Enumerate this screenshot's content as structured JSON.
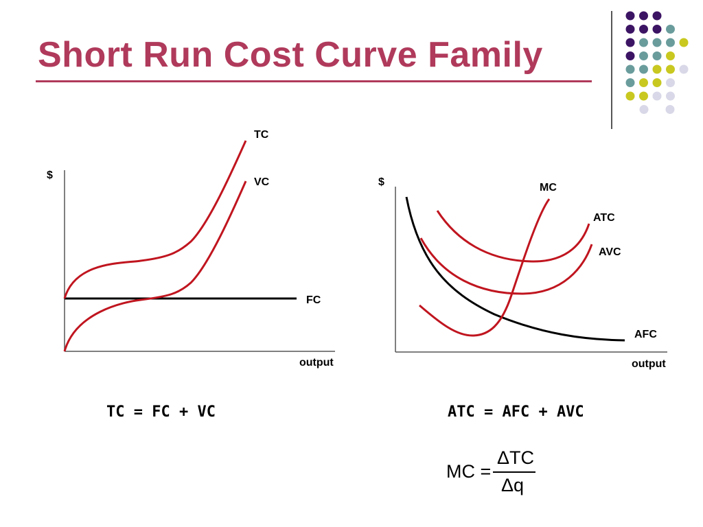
{
  "slide": {
    "title": "Short Run Cost Curve Family"
  },
  "colors": {
    "title": "#b03a5b",
    "curve_red": "#c0151f",
    "curve_black": "#000000",
    "dot_purple": "#3c1464",
    "dot_teal": "#6a9c9c",
    "dot_yellow": "#c8c820",
    "dot_lavender": "#d8d8e8"
  },
  "left_diagram": {
    "y_axis_label": "$",
    "x_axis_label": "output",
    "curves": {
      "tc": "TC",
      "vc": "VC",
      "fc": "FC"
    }
  },
  "right_diagram": {
    "y_axis_label": "$",
    "x_axis_label": "output",
    "curves": {
      "mc": "MC",
      "atc": "ATC",
      "avc": "AVC",
      "afc": "AFC"
    }
  },
  "formulas": {
    "tc_identity": "TC = FC + VC",
    "atc_identity": "ATC = AFC + AVC",
    "mc": {
      "lhs": "MC =",
      "numerator": "ΔTC",
      "denominator": "Δq"
    }
  },
  "decor": {
    "dot_grid": [
      [
        "purple",
        "purple",
        "purple"
      ],
      [
        "purple",
        "purple",
        "purple",
        "teal"
      ],
      [
        "purple",
        "teal",
        "teal",
        "teal",
        "yellow"
      ],
      [
        "purple",
        "teal",
        "teal",
        "yellow"
      ],
      [
        "teal",
        "teal",
        "yellow",
        "yellow",
        "lavender"
      ],
      [
        "teal",
        "yellow",
        "yellow",
        "lavender"
      ],
      [
        "yellow",
        "yellow",
        "lavender",
        "lavender"
      ],
      [
        "lavender",
        "lavender"
      ]
    ]
  }
}
